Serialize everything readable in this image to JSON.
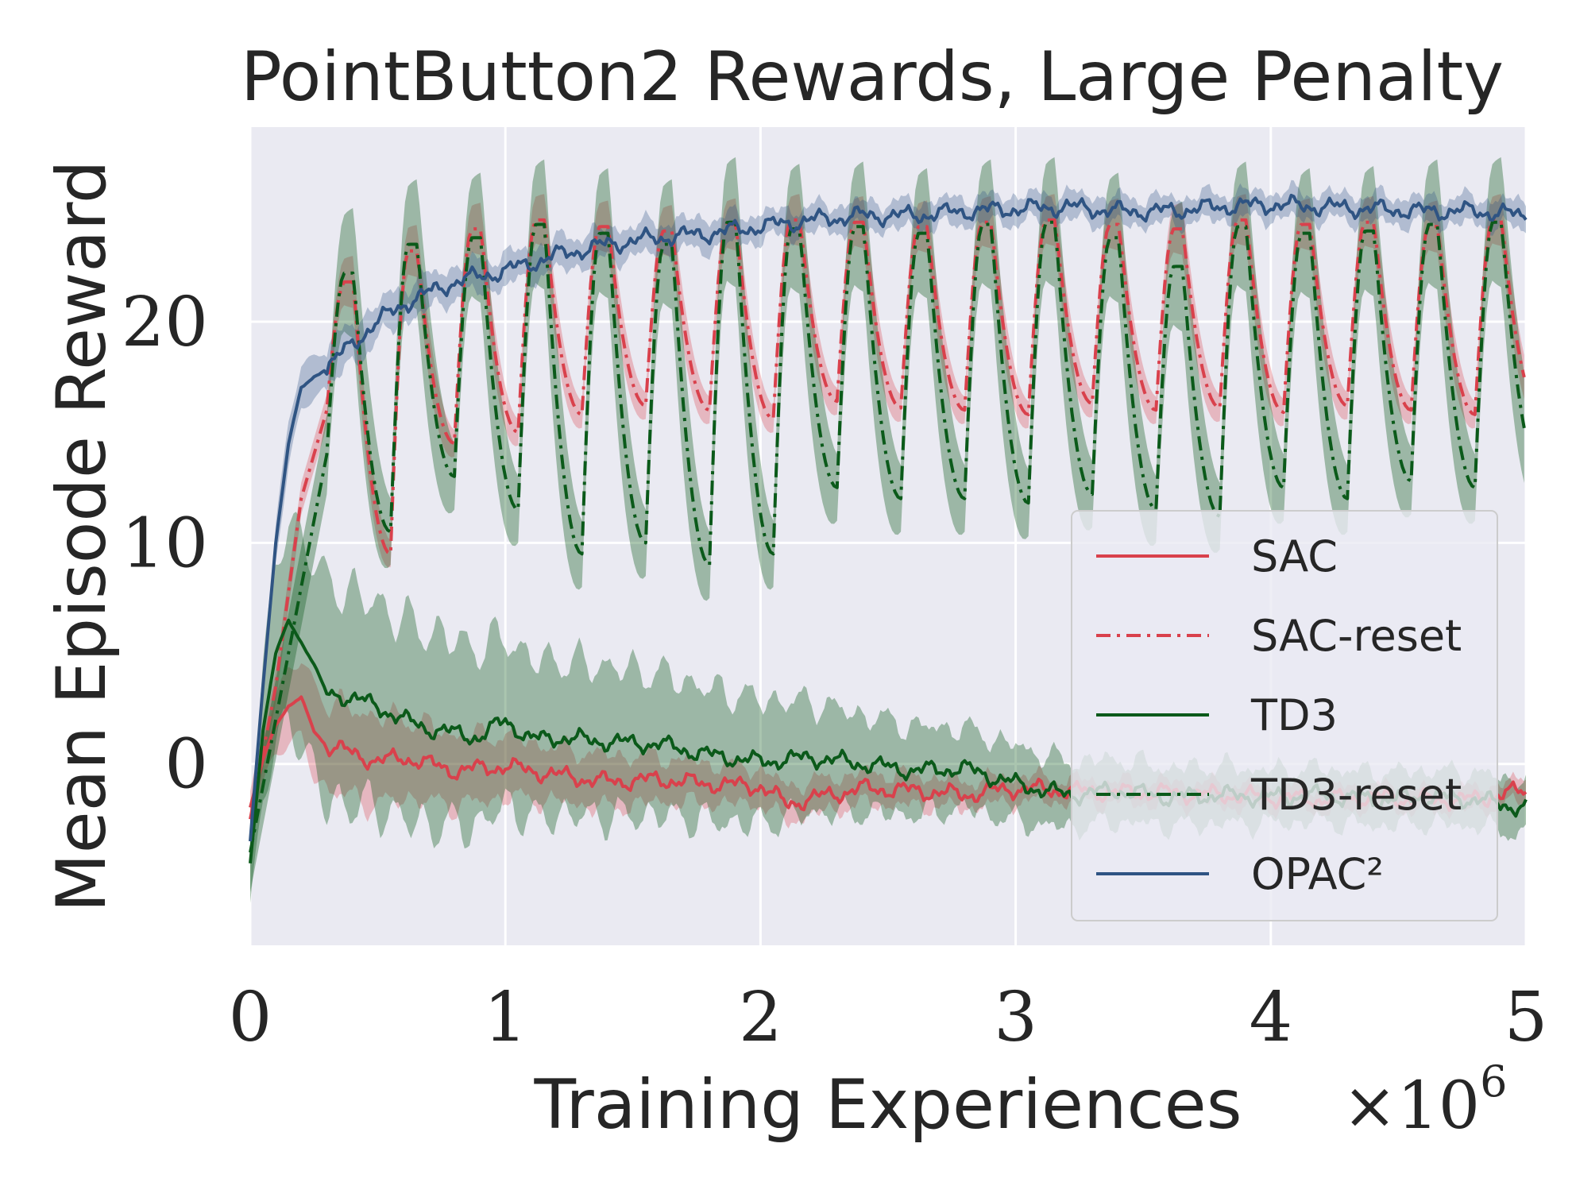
{
  "chart_data": {
    "type": "line",
    "title": "PointButton2 Rewards, Large Penalty",
    "xlabel": "Training Experiences",
    "ylabel": "Mean Episode Reward",
    "x_multiplier_base": "×10",
    "x_multiplier_exp": "6",
    "xlim": [
      0,
      5
    ],
    "ylim": [
      -8.2,
      28.8
    ],
    "xticks": [
      0,
      1,
      2,
      3,
      4,
      5
    ],
    "xtick_labels": [
      "0",
      "1",
      "2",
      "3",
      "4",
      "5"
    ],
    "yticks": [
      0,
      10,
      20
    ],
    "ytick_labels": [
      "0",
      "10",
      "20"
    ],
    "grid": true,
    "legend_position": "lower-right",
    "series": [
      {
        "name": "SAC",
        "color": "#d9414c",
        "linestyle": "solid",
        "x": [
          0,
          0.05,
          0.1,
          0.15,
          0.2,
          0.25,
          0.3,
          0.4,
          0.5,
          0.6,
          0.8,
          1.0,
          1.2,
          1.4,
          1.6,
          1.8,
          2.0,
          2.1,
          2.4,
          2.6,
          2.8,
          3.0,
          3.2,
          3.4,
          3.6,
          3.8,
          4.0,
          4.2,
          4.4,
          4.6,
          4.8,
          5.0
        ],
        "y": [
          -2,
          0.2,
          1.8,
          2.6,
          3.0,
          1.5,
          0.8,
          0.5,
          0.1,
          0.3,
          -0.3,
          -0.1,
          -0.5,
          -0.8,
          -0.7,
          -0.9,
          -1.0,
          -1.8,
          -1.1,
          -1.2,
          -1.4,
          -1.1,
          -1.2,
          -1.3,
          -1.3,
          -1.4,
          -1.5,
          -1.6,
          -1.5,
          -1.6,
          -1.6,
          -1.2
        ],
        "band": [
          0.7,
          1.0,
          1.4,
          1.6,
          1.8,
          2.0,
          2.0,
          2.0,
          2.0,
          1.8,
          1.6,
          1.4,
          1.2,
          1.2,
          1.0,
          0.9,
          0.8,
          0.8,
          0.7,
          0.7,
          0.6,
          0.6,
          0.5,
          0.5,
          0.5,
          0.5,
          0.5,
          0.5,
          0.5,
          0.5,
          0.5,
          0.5
        ]
      },
      {
        "name": "SAC-reset",
        "color": "#d9414c",
        "linestyle": "dashdot",
        "reset_period": 0.25,
        "x": [
          0,
          0.1,
          0.2,
          0.3
        ],
        "y": [
          -2.5,
          3.5,
          12.0,
          16.0
        ],
        "peaks": [
          21.8,
          23.2,
          24.2,
          24.6,
          24.3,
          24.1,
          24.4,
          24.6,
          24.5,
          24.3,
          24.5,
          24.6,
          24.4,
          24.2,
          24.6,
          24.4,
          24.5,
          24.3,
          24.6
        ],
        "troughs": [
          9.5,
          14.5,
          15.0,
          15.8,
          16.2,
          16.0,
          15.6,
          16.4,
          16.1,
          16.0,
          15.8,
          16.3,
          16.0,
          16.1,
          15.9,
          16.2,
          16.0,
          15.8,
          16.2
        ],
        "band": 1.2
      },
      {
        "name": "TD3",
        "color": "#0b5a1a",
        "linestyle": "solid",
        "x": [
          0,
          0.05,
          0.1,
          0.15,
          0.2,
          0.25,
          0.3,
          0.4,
          0.5,
          0.6,
          0.7,
          0.8,
          0.9,
          1.0,
          1.1,
          1.2,
          1.4,
          1.6,
          1.8,
          2.0,
          2.2,
          2.4,
          2.6,
          2.8,
          3.0,
          3.2,
          3.4,
          3.6,
          3.8,
          4.0,
          4.2,
          4.4,
          4.6,
          4.8,
          5.0
        ],
        "y": [
          -4.5,
          1.5,
          5.0,
          6.5,
          5.5,
          4.5,
          3.2,
          3.0,
          2.6,
          2.0,
          1.6,
          1.4,
          1.2,
          2.0,
          1.1,
          1.2,
          1.0,
          0.9,
          0.4,
          0.1,
          0.3,
          0.0,
          -0.3,
          -0.2,
          -0.9,
          -1.4,
          -1.2,
          -1.5,
          -1.4,
          -1.5,
          -1.4,
          -1.6,
          -1.5,
          -1.6,
          -2.0
        ],
        "band": [
          2.0,
          3.0,
          4.0,
          4.5,
          4.7,
          4.8,
          5.0,
          4.8,
          4.6,
          4.5,
          4.4,
          4.2,
          4.0,
          3.8,
          3.6,
          3.5,
          3.4,
          3.2,
          3.0,
          2.8,
          2.5,
          2.2,
          2.0,
          1.8,
          1.7,
          1.5,
          1.4,
          1.3,
          1.3,
          1.2,
          1.2,
          1.2,
          1.2,
          1.2,
          1.2
        ]
      },
      {
        "name": "TD3-reset",
        "color": "#0b5a1a",
        "linestyle": "dashdot",
        "reset_period": 0.25,
        "x": [
          0,
          0.1,
          0.2,
          0.3
        ],
        "y": [
          -4.0,
          2.0,
          8.0,
          14.0
        ],
        "peaks": [
          22.2,
          23.5,
          23.8,
          24.4,
          24.0,
          23.5,
          24.5,
          24.2,
          24.3,
          24.0,
          24.4,
          24.5,
          23.8,
          22.5,
          24.3,
          24.0,
          24.1,
          24.4,
          24.5
        ],
        "troughs": [
          10.5,
          13.0,
          11.5,
          9.5,
          10.0,
          9.0,
          9.5,
          12.5,
          12.0,
          12.0,
          11.8,
          12.2,
          11.5,
          11.2,
          12.5,
          12.0,
          12.8,
          12.5,
          13.5
        ],
        "band": 3.0
      },
      {
        "name": "OPAC²",
        "color": "#2f5483",
        "linestyle": "solid",
        "x": [
          0,
          0.05,
          0.1,
          0.15,
          0.2,
          0.25,
          0.3,
          0.4,
          0.5,
          0.6,
          0.7,
          0.8,
          1.0,
          1.2,
          1.4,
          1.6,
          1.8,
          2.0,
          2.2,
          2.4,
          2.6,
          2.8,
          3.0,
          3.2,
          3.4,
          3.6,
          3.8,
          4.0,
          4.2,
          4.4,
          4.6,
          4.8,
          5.0
        ],
        "y": [
          -3.5,
          3.5,
          10.0,
          14.5,
          17.0,
          17.5,
          17.9,
          19.0,
          20.0,
          20.8,
          21.3,
          21.8,
          22.3,
          23.0,
          23.5,
          23.8,
          24.0,
          24.3,
          24.6,
          24.8,
          24.8,
          25.0,
          25.1,
          25.2,
          25.0,
          25.0,
          25.2,
          25.3,
          25.2,
          25.1,
          25.0,
          25.0,
          24.8
        ],
        "band": [
          0.5,
          0.7,
          0.8,
          1.0,
          1.0,
          0.9,
          0.9,
          0.9,
          0.8,
          0.8,
          0.8,
          0.7,
          0.7,
          0.7,
          0.7,
          0.7,
          0.7,
          0.6,
          0.6,
          0.6,
          0.6,
          0.6,
          0.6,
          0.6,
          0.6,
          0.6,
          0.6,
          0.6,
          0.6,
          0.6,
          0.6,
          0.6,
          0.6
        ]
      }
    ]
  }
}
